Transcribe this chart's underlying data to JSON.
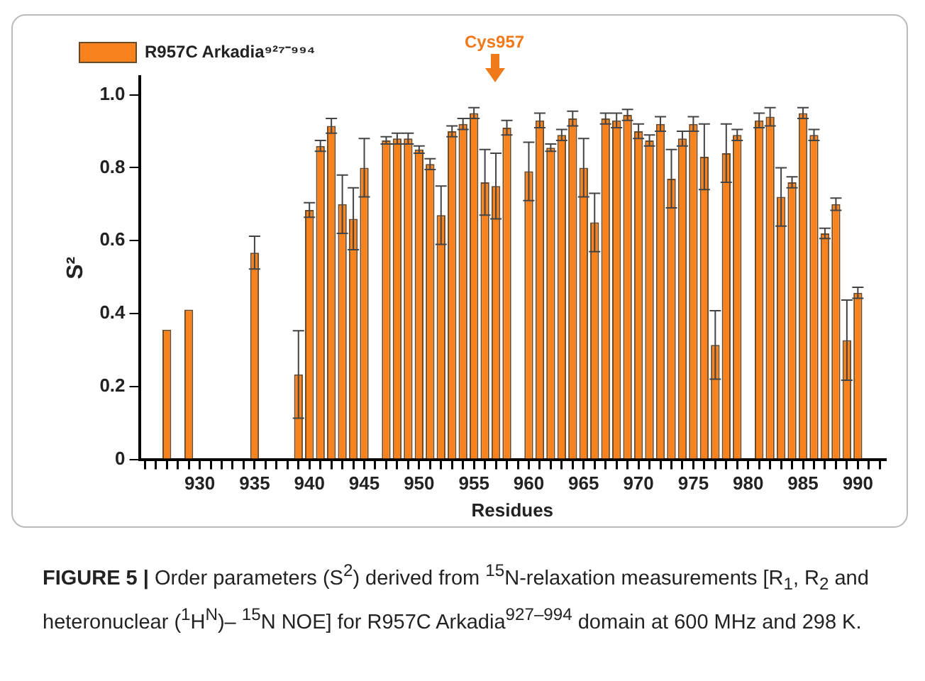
{
  "chart_data": {
    "type": "bar",
    "xlabel": "Residues",
    "ylabel": "S²",
    "categories": [
      null,
      null,
      null,
      null,
      null,
      "930",
      null,
      null,
      null,
      null,
      "935",
      null,
      null,
      null,
      null,
      "940",
      null,
      null,
      null,
      null,
      "945",
      null,
      null,
      null,
      null,
      "950",
      null,
      null,
      null,
      null,
      "955",
      null,
      null,
      null,
      null,
      "960",
      null,
      null,
      null,
      null,
      "965",
      null,
      null,
      null,
      null,
      "970",
      null,
      null,
      null,
      null,
      "975",
      null,
      null,
      null,
      null,
      "980",
      null,
      null,
      null,
      null,
      "985",
      null,
      null,
      null,
      null,
      "990",
      null,
      null
    ],
    "series": [
      {
        "name": "R957C Arkadia⁹²⁷⁻⁹⁹⁴",
        "color": "#f7821e",
        "values": [
          null,
          null,
          0.356,
          null,
          0.411,
          null,
          null,
          null,
          null,
          null,
          0.567,
          null,
          null,
          null,
          0.233,
          0.684,
          0.86,
          0.915,
          0.7,
          0.66,
          0.8,
          null,
          0.875,
          0.88,
          0.88,
          0.85,
          0.81,
          0.67,
          0.9,
          0.92,
          0.95,
          0.76,
          0.75,
          0.91,
          null,
          0.79,
          0.93,
          0.855,
          0.89,
          0.935,
          0.8,
          0.65,
          0.935,
          0.93,
          0.945,
          0.9,
          0.875,
          0.92,
          0.77,
          0.88,
          0.92,
          0.83,
          0.314,
          0.84,
          0.89,
          null,
          0.93,
          0.94,
          0.72,
          0.76,
          0.95,
          0.89,
          0.62,
          0.7,
          0.327,
          0.457,
          null,
          null
        ],
        "errors": [
          null,
          null,
          null,
          null,
          null,
          null,
          null,
          null,
          null,
          null,
          0.045,
          null,
          null,
          null,
          0.12,
          0.02,
          0.015,
          0.02,
          0.08,
          0.085,
          0.08,
          null,
          0.01,
          0.015,
          0.015,
          0.01,
          0.015,
          0.08,
          0.015,
          0.015,
          0.015,
          0.09,
          0.09,
          0.02,
          null,
          0.08,
          0.02,
          0.01,
          0.015,
          0.02,
          0.08,
          0.08,
          0.015,
          0.02,
          0.015,
          0.02,
          0.015,
          0.02,
          0.08,
          0.02,
          0.02,
          0.09,
          0.094,
          0.08,
          0.015,
          null,
          0.02,
          0.025,
          0.08,
          0.015,
          0.015,
          0.015,
          0.014,
          0.017,
          0.11,
          0.015,
          null,
          null
        ]
      }
    ],
    "ylim": [
      0,
      1.05
    ],
    "yticks": [
      0,
      0.2,
      0.4,
      0.6,
      0.8,
      {
        "value": 1,
        "label": "1.0"
      }
    ],
    "legend": "top left",
    "grid": false,
    "annotations": [
      "Cys957",
      "FIGURE 5 |",
      "Order parameters (S$^{2}$) derived from $^{15}$N-relaxation measurements [R$_{1}$, R$_{2}$ and heteronuclear ($^{1}$H$^{N}$)– $^{15}$N NOE] for R957C Arkadia$^{927–994}$ domain at 600 MHz and 298 K."
    ]
  }
}
